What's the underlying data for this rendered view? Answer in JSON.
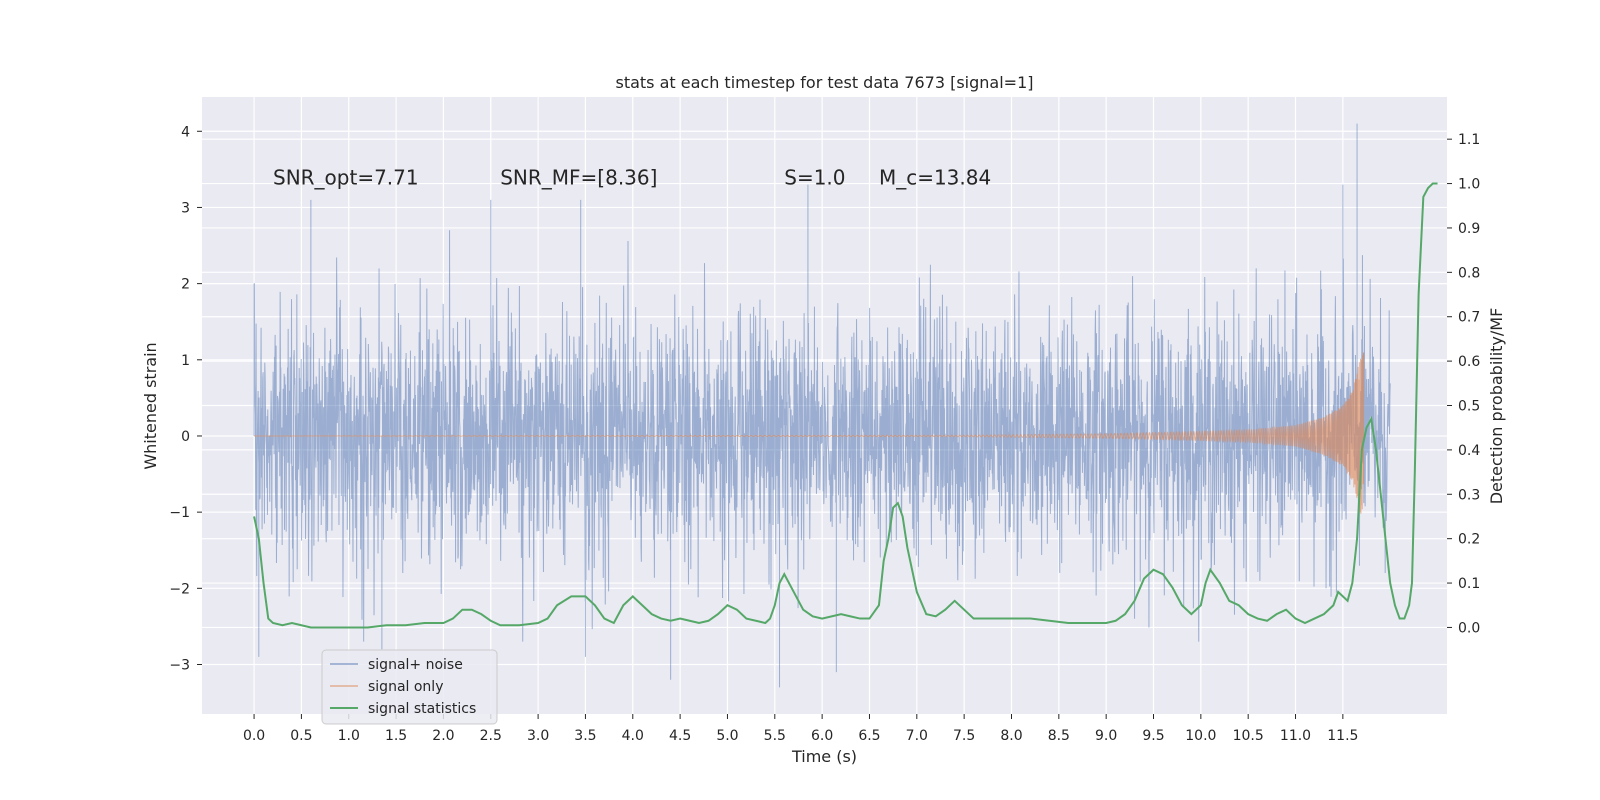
{
  "chart_data": {
    "type": "line",
    "title": "stats at each timestep for test data 7673 [signal=1]",
    "xlabel": "Time (s)",
    "ylabel": "Whitened strain",
    "ylabel_right": "Detection probability/MF",
    "xlim": [
      -0.55,
      12.6
    ],
    "ylim": [
      -3.65,
      4.45
    ],
    "ylim_right": [
      -0.195,
      1.195
    ],
    "x_ticks": [
      "0.0",
      "0.5",
      "1.0",
      "1.5",
      "2.0",
      "2.5",
      "3.0",
      "3.5",
      "4.0",
      "4.5",
      "5.0",
      "5.5",
      "6.0",
      "6.5",
      "7.0",
      "7.5",
      "8.0",
      "8.5",
      "9.0",
      "9.5",
      "10.0",
      "10.5",
      "11.0",
      "11.5"
    ],
    "y_ticks": [
      "−3",
      "−2",
      "−1",
      "0",
      "1",
      "2",
      "3",
      "4"
    ],
    "y_ticks_right": [
      "0.0",
      "0.1",
      "0.2",
      "0.3",
      "0.4",
      "0.5",
      "0.6",
      "0.7",
      "0.8",
      "0.9",
      "1.0",
      "1.1"
    ],
    "grid": true,
    "legend_position": "lower-left",
    "annotations": [
      {
        "text": "SNR_opt=7.71",
        "x": 0.2,
        "y": 3.3
      },
      {
        "text": "SNR_MF=[8.36]",
        "x": 2.6,
        "y": 3.3
      },
      {
        "text": "S=1.0",
        "x": 5.6,
        "y": 3.3
      },
      {
        "text": "M_c=13.84",
        "x": 6.6,
        "y": 3.3
      }
    ],
    "series": [
      {
        "name": "signal+ noise",
        "color": "#4c72b0",
        "axis": "left",
        "kind": "noise-trace",
        "t_range": [
          0.0,
          12.0
        ],
        "std": 0.8,
        "peaks": [
          {
            "x": 0.0,
            "y": 2.0
          },
          {
            "x": 0.05,
            "y": -2.9
          },
          {
            "x": 0.6,
            "y": 3.1
          },
          {
            "x": 1.35,
            "y": -2.8
          },
          {
            "x": 2.5,
            "y": 3.1
          },
          {
            "x": 3.45,
            "y": 3.1
          },
          {
            "x": 3.5,
            "y": -2.9
          },
          {
            "x": 4.4,
            "y": -3.2
          },
          {
            "x": 5.55,
            "y": -3.3
          },
          {
            "x": 5.85,
            "y": 3.3
          },
          {
            "x": 6.15,
            "y": -3.1
          },
          {
            "x": 11.5,
            "y": 3.3
          },
          {
            "x": 11.65,
            "y": 4.1
          }
        ]
      },
      {
        "name": "signal only",
        "color": "#dd8452",
        "axis": "left",
        "kind": "chirp",
        "t_range": [
          0.0,
          11.72
        ],
        "envelope": [
          {
            "x": 0.0,
            "y": 0.0
          },
          {
            "x": 7.5,
            "y": 0.01
          },
          {
            "x": 9.0,
            "y": 0.03
          },
          {
            "x": 10.0,
            "y": 0.06
          },
          {
            "x": 10.5,
            "y": 0.08
          },
          {
            "x": 11.0,
            "y": 0.14
          },
          {
            "x": 11.3,
            "y": 0.25
          },
          {
            "x": 11.5,
            "y": 0.4
          },
          {
            "x": 11.6,
            "y": 0.6
          },
          {
            "x": 11.68,
            "y": 1.0
          },
          {
            "x": 11.72,
            "y": 1.1
          }
        ]
      },
      {
        "name": "signal statistics",
        "color": "#55a868",
        "axis": "right",
        "kind": "line",
        "points": [
          [
            0.0,
            0.25
          ],
          [
            0.05,
            0.2
          ],
          [
            0.1,
            0.1
          ],
          [
            0.15,
            0.02
          ],
          [
            0.2,
            0.01
          ],
          [
            0.3,
            0.005
          ],
          [
            0.4,
            0.01
          ],
          [
            0.5,
            0.005
          ],
          [
            0.6,
            0.0
          ],
          [
            0.8,
            0.0
          ],
          [
            1.0,
            0.0
          ],
          [
            1.2,
            0.0
          ],
          [
            1.4,
            0.005
          ],
          [
            1.6,
            0.005
          ],
          [
            1.8,
            0.01
          ],
          [
            1.9,
            0.01
          ],
          [
            2.0,
            0.01
          ],
          [
            2.1,
            0.02
          ],
          [
            2.2,
            0.04
          ],
          [
            2.3,
            0.04
          ],
          [
            2.4,
            0.03
          ],
          [
            2.5,
            0.015
          ],
          [
            2.6,
            0.005
          ],
          [
            2.8,
            0.005
          ],
          [
            3.0,
            0.01
          ],
          [
            3.1,
            0.02
          ],
          [
            3.2,
            0.05
          ],
          [
            3.35,
            0.07
          ],
          [
            3.5,
            0.07
          ],
          [
            3.6,
            0.05
          ],
          [
            3.7,
            0.02
          ],
          [
            3.8,
            0.01
          ],
          [
            3.9,
            0.05
          ],
          [
            4.0,
            0.07
          ],
          [
            4.1,
            0.05
          ],
          [
            4.2,
            0.03
          ],
          [
            4.3,
            0.02
          ],
          [
            4.4,
            0.015
          ],
          [
            4.5,
            0.02
          ],
          [
            4.6,
            0.015
          ],
          [
            4.7,
            0.01
          ],
          [
            4.8,
            0.015
          ],
          [
            4.9,
            0.03
          ],
          [
            5.0,
            0.05
          ],
          [
            5.1,
            0.04
          ],
          [
            5.2,
            0.02
          ],
          [
            5.3,
            0.015
          ],
          [
            5.4,
            0.01
          ],
          [
            5.45,
            0.02
          ],
          [
            5.5,
            0.05
          ],
          [
            5.55,
            0.1
          ],
          [
            5.6,
            0.12
          ],
          [
            5.7,
            0.08
          ],
          [
            5.8,
            0.04
          ],
          [
            5.9,
            0.025
          ],
          [
            6.0,
            0.02
          ],
          [
            6.1,
            0.025
          ],
          [
            6.2,
            0.03
          ],
          [
            6.3,
            0.025
          ],
          [
            6.4,
            0.02
          ],
          [
            6.5,
            0.02
          ],
          [
            6.6,
            0.05
          ],
          [
            6.65,
            0.15
          ],
          [
            6.7,
            0.2
          ],
          [
            6.75,
            0.27
          ],
          [
            6.8,
            0.28
          ],
          [
            6.85,
            0.25
          ],
          [
            6.9,
            0.18
          ],
          [
            7.0,
            0.08
          ],
          [
            7.1,
            0.03
          ],
          [
            7.2,
            0.025
          ],
          [
            7.3,
            0.04
          ],
          [
            7.4,
            0.06
          ],
          [
            7.5,
            0.04
          ],
          [
            7.6,
            0.02
          ],
          [
            7.8,
            0.02
          ],
          [
            8.0,
            0.02
          ],
          [
            8.2,
            0.02
          ],
          [
            8.4,
            0.015
          ],
          [
            8.6,
            0.01
          ],
          [
            8.8,
            0.01
          ],
          [
            9.0,
            0.01
          ],
          [
            9.1,
            0.015
          ],
          [
            9.2,
            0.03
          ],
          [
            9.3,
            0.06
          ],
          [
            9.4,
            0.11
          ],
          [
            9.5,
            0.13
          ],
          [
            9.6,
            0.12
          ],
          [
            9.7,
            0.09
          ],
          [
            9.8,
            0.05
          ],
          [
            9.9,
            0.03
          ],
          [
            10.0,
            0.05
          ],
          [
            10.05,
            0.1
          ],
          [
            10.1,
            0.13
          ],
          [
            10.2,
            0.1
          ],
          [
            10.3,
            0.06
          ],
          [
            10.4,
            0.05
          ],
          [
            10.5,
            0.03
          ],
          [
            10.6,
            0.02
          ],
          [
            10.7,
            0.015
          ],
          [
            10.8,
            0.03
          ],
          [
            10.9,
            0.04
          ],
          [
            11.0,
            0.02
          ],
          [
            11.1,
            0.01
          ],
          [
            11.2,
            0.02
          ],
          [
            11.3,
            0.03
          ],
          [
            11.4,
            0.05
          ],
          [
            11.45,
            0.08
          ],
          [
            11.5,
            0.07
          ],
          [
            11.55,
            0.06
          ],
          [
            11.6,
            0.1
          ],
          [
            11.65,
            0.2
          ],
          [
            11.7,
            0.4
          ],
          [
            11.75,
            0.45
          ],
          [
            11.8,
            0.47
          ],
          [
            11.85,
            0.4
          ],
          [
            11.9,
            0.3
          ],
          [
            11.95,
            0.2
          ],
          [
            12.0,
            0.1
          ],
          [
            12.05,
            0.05
          ],
          [
            12.1,
            0.02
          ],
          [
            12.15,
            0.02
          ],
          [
            12.2,
            0.05
          ],
          [
            12.23,
            0.1
          ],
          [
            12.26,
            0.35
          ],
          [
            12.3,
            0.75
          ],
          [
            12.35,
            0.97
          ],
          [
            12.4,
            0.99
          ],
          [
            12.45,
            1.0
          ],
          [
            12.5,
            1.0
          ]
        ]
      }
    ]
  }
}
